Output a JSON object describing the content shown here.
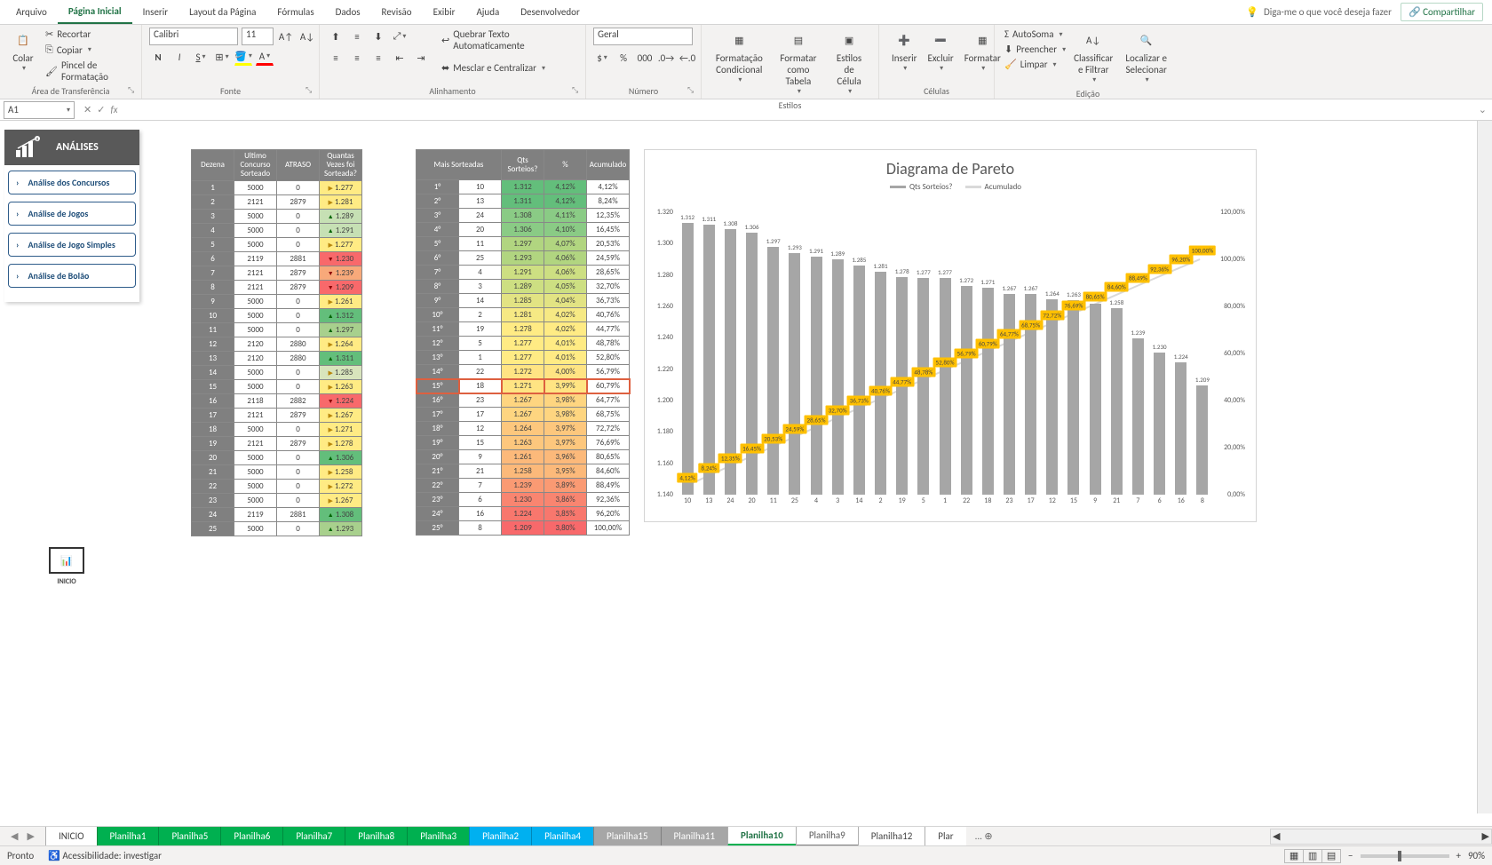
{
  "menu": {
    "arquivo": "Arquivo",
    "paginaInicial": "Página Inicial",
    "inserir": "Inserir",
    "layout": "Layout da Página",
    "formulas": "Fórmulas",
    "dados": "Dados",
    "revisao": "Revisão",
    "exibir": "Exibir",
    "ajuda": "Ajuda",
    "desenv": "Desenvolvedor",
    "tellme": "Diga-me o que você deseja fazer",
    "share": "Compartilhar"
  },
  "ribbon": {
    "clipboard": {
      "title": "Área de Transferência",
      "colar": "Colar",
      "recortar": "Recortar",
      "copiar": "Copiar",
      "pincel": "Pincel de Formatação"
    },
    "font": {
      "title": "Fonte",
      "name": "Calibri",
      "size": "11"
    },
    "align": {
      "title": "Alinhamento",
      "wrap": "Quebrar Texto Automaticamente",
      "merge": "Mesclar e Centralizar"
    },
    "number": {
      "title": "Número",
      "format": "Geral"
    },
    "styles": {
      "title": "Estilos",
      "cond": "Formatação Condicional",
      "table": "Formatar como Tabela",
      "cell": "Estilos de Célula"
    },
    "cells": {
      "title": "Células",
      "insert": "Inserir",
      "delete": "Excluir",
      "format": "Formatar"
    },
    "editing": {
      "title": "Edição",
      "autosum": "AutoSoma",
      "fill": "Preencher",
      "clear": "Limpar",
      "sort": "Classificar e Filtrar",
      "find": "Localizar e Selecionar"
    }
  },
  "nameBox": "A1",
  "analysisPanel": {
    "title": "ANÁLISES",
    "btns": [
      "Análise dos Concursos",
      "Análise de Jogos",
      "Análise de Jogo Simples",
      "Análise de Bolão"
    ],
    "inicioLabel": "INICIO"
  },
  "table1": {
    "headers": [
      "Dezena",
      "Ultimo Concurso Sorteado",
      "ATRASO",
      "Quantas Vezes foi Sorteada?"
    ],
    "rows": [
      {
        "d": "1",
        "c": "5000",
        "a": "0",
        "q": "1.277",
        "qc": "#ffeb84",
        "ar": "side"
      },
      {
        "d": "2",
        "c": "2121",
        "a": "2879",
        "q": "1.281",
        "qc": "#ffeb84",
        "ar": "side"
      },
      {
        "d": "3",
        "c": "5000",
        "a": "0",
        "q": "1.289",
        "qc": "#c6e0b4",
        "ar": "up"
      },
      {
        "d": "4",
        "c": "5000",
        "a": "0",
        "q": "1.291",
        "qc": "#c6e0b4",
        "ar": "up"
      },
      {
        "d": "5",
        "c": "5000",
        "a": "0",
        "q": "1.277",
        "qc": "#ffeb84",
        "ar": "side"
      },
      {
        "d": "6",
        "c": "2119",
        "a": "2881",
        "q": "1.230",
        "qc": "#f8696b",
        "ar": "down"
      },
      {
        "d": "7",
        "c": "2121",
        "a": "2879",
        "q": "1.239",
        "qc": "#f8a97a",
        "ar": "down"
      },
      {
        "d": "8",
        "c": "2121",
        "a": "2879",
        "q": "1.209",
        "qc": "#f8696b",
        "ar": "down"
      },
      {
        "d": "9",
        "c": "5000",
        "a": "0",
        "q": "1.261",
        "qc": "#ffeb84",
        "ar": "side"
      },
      {
        "d": "10",
        "c": "5000",
        "a": "0",
        "q": "1.312",
        "qc": "#63be7b",
        "ar": "up"
      },
      {
        "d": "11",
        "c": "5000",
        "a": "0",
        "q": "1.297",
        "qc": "#a8d08d",
        "ar": "up"
      },
      {
        "d": "12",
        "c": "2120",
        "a": "2880",
        "q": "1.264",
        "qc": "#ffeb84",
        "ar": "side"
      },
      {
        "d": "13",
        "c": "2120",
        "a": "2880",
        "q": "1.311",
        "qc": "#63be7b",
        "ar": "up"
      },
      {
        "d": "14",
        "c": "5000",
        "a": "0",
        "q": "1.285",
        "qc": "#d8e4bc",
        "ar": "side"
      },
      {
        "d": "15",
        "c": "5000",
        "a": "0",
        "q": "1.263",
        "qc": "#ffeb84",
        "ar": "side"
      },
      {
        "d": "16",
        "c": "2118",
        "a": "2882",
        "q": "1.224",
        "qc": "#f8696b",
        "ar": "down"
      },
      {
        "d": "17",
        "c": "2121",
        "a": "2879",
        "q": "1.267",
        "qc": "#ffeb84",
        "ar": "side"
      },
      {
        "d": "18",
        "c": "5000",
        "a": "0",
        "q": "1.271",
        "qc": "#ffeb84",
        "ar": "side"
      },
      {
        "d": "19",
        "c": "2121",
        "a": "2879",
        "q": "1.278",
        "qc": "#ffeb84",
        "ar": "side"
      },
      {
        "d": "20",
        "c": "5000",
        "a": "0",
        "q": "1.306",
        "qc": "#63be7b",
        "ar": "up"
      },
      {
        "d": "21",
        "c": "5000",
        "a": "0",
        "q": "1.258",
        "qc": "#ffeb84",
        "ar": "side"
      },
      {
        "d": "22",
        "c": "5000",
        "a": "0",
        "q": "1.272",
        "qc": "#ffeb84",
        "ar": "side"
      },
      {
        "d": "23",
        "c": "5000",
        "a": "0",
        "q": "1.267",
        "qc": "#ffeb84",
        "ar": "side"
      },
      {
        "d": "24",
        "c": "2119",
        "a": "2881",
        "q": "1.308",
        "qc": "#63be7b",
        "ar": "up"
      },
      {
        "d": "25",
        "c": "5000",
        "a": "0",
        "q": "1.293",
        "qc": "#a8d08d",
        "ar": "up"
      }
    ]
  },
  "table2": {
    "headers": [
      "Mais Sorteadas",
      "",
      "Qts Sorteios?",
      "%",
      "Acumulado"
    ],
    "highlightRow": 14,
    "rows": [
      {
        "r": "1°",
        "d": "10",
        "q": "1.312",
        "p": "4,12%",
        "a": "4,12%",
        "qc": "#63be7b",
        "pc": "#63be7b"
      },
      {
        "r": "2°",
        "d": "13",
        "q": "1.311",
        "p": "4,12%",
        "a": "8,24%",
        "qc": "#63be7b",
        "pc": "#63be7b"
      },
      {
        "r": "3°",
        "d": "24",
        "q": "1.308",
        "p": "4,11%",
        "a": "12,35%",
        "qc": "#8acb85",
        "pc": "#8acb85"
      },
      {
        "r": "4°",
        "d": "20",
        "q": "1.306",
        "p": "4,10%",
        "a": "16,45%",
        "qc": "#8acb85",
        "pc": "#8acb85"
      },
      {
        "r": "5°",
        "d": "11",
        "q": "1.297",
        "p": "4,07%",
        "a": "20,53%",
        "qc": "#b1d580",
        "pc": "#b1d580"
      },
      {
        "r": "6°",
        "d": "25",
        "q": "1.293",
        "p": "4,06%",
        "a": "24,59%",
        "qc": "#b1d580",
        "pc": "#b1d580"
      },
      {
        "r": "7°",
        "d": "4",
        "q": "1.291",
        "p": "4,06%",
        "a": "28,65%",
        "qc": "#cddf82",
        "pc": "#cddf82"
      },
      {
        "r": "8°",
        "d": "3",
        "q": "1.289",
        "p": "4,05%",
        "a": "32,70%",
        "qc": "#cddf82",
        "pc": "#cddf82"
      },
      {
        "r": "9°",
        "d": "14",
        "q": "1.285",
        "p": "4,04%",
        "a": "36,73%",
        "qc": "#e2e383",
        "pc": "#e2e383"
      },
      {
        "r": "10°",
        "d": "2",
        "q": "1.281",
        "p": "4,02%",
        "a": "40,76%",
        "qc": "#f6e984",
        "pc": "#f6e984"
      },
      {
        "r": "11°",
        "d": "19",
        "q": "1.278",
        "p": "4,02%",
        "a": "44,77%",
        "qc": "#ffeb84",
        "pc": "#ffeb84"
      },
      {
        "r": "12°",
        "d": "5",
        "q": "1.277",
        "p": "4,01%",
        "a": "48,78%",
        "qc": "#ffeb84",
        "pc": "#ffeb84"
      },
      {
        "r": "13°",
        "d": "1",
        "q": "1.277",
        "p": "4,01%",
        "a": "52,80%",
        "qc": "#ffeb84",
        "pc": "#ffeb84"
      },
      {
        "r": "14°",
        "d": "22",
        "q": "1.272",
        "p": "4,00%",
        "a": "56,79%",
        "qc": "#ffe483",
        "pc": "#ffe483"
      },
      {
        "r": "15°",
        "d": "18",
        "q": "1.271",
        "p": "3,99%",
        "a": "60,79%",
        "qc": "#ffe483",
        "pc": "#ffe483"
      },
      {
        "r": "16°",
        "d": "23",
        "q": "1.267",
        "p": "3,98%",
        "a": "64,77%",
        "qc": "#fed580",
        "pc": "#fed580"
      },
      {
        "r": "17°",
        "d": "17",
        "q": "1.267",
        "p": "3,98%",
        "a": "68,75%",
        "qc": "#fed580",
        "pc": "#fed580"
      },
      {
        "r": "18°",
        "d": "12",
        "q": "1.264",
        "p": "3,97%",
        "a": "72,72%",
        "qc": "#fdc77d",
        "pc": "#fdc77d"
      },
      {
        "r": "19°",
        "d": "15",
        "q": "1.263",
        "p": "3,97%",
        "a": "76,69%",
        "qc": "#fdc77d",
        "pc": "#fdc77d"
      },
      {
        "r": "20°",
        "d": "9",
        "q": "1.261",
        "p": "3,96%",
        "a": "80,65%",
        "qc": "#fcb97a",
        "pc": "#fcb97a"
      },
      {
        "r": "21°",
        "d": "21",
        "q": "1.258",
        "p": "3,95%",
        "a": "84,60%",
        "qc": "#fcb97a",
        "pc": "#fcb97a"
      },
      {
        "r": "22°",
        "d": "7",
        "q": "1.239",
        "p": "3,89%",
        "a": "88,49%",
        "qc": "#fa9a73",
        "pc": "#fa9a73"
      },
      {
        "r": "23°",
        "d": "6",
        "q": "1.230",
        "p": "3,86%",
        "a": "92,36%",
        "qc": "#f98570",
        "pc": "#f98570"
      },
      {
        "r": "24°",
        "d": "16",
        "q": "1.224",
        "p": "3,85%",
        "a": "96,20%",
        "qc": "#f8776d",
        "pc": "#f8776d"
      },
      {
        "r": "25°",
        "d": "8",
        "q": "1.209",
        "p": "3,80%",
        "a": "100,00%",
        "qc": "#f8696b",
        "pc": "#f8696b"
      }
    ]
  },
  "chart": {
    "title": "Diagrama de Pareto",
    "legend": {
      "series1": "Qts Sorteios?",
      "series2": "Acumulado"
    },
    "barColor": "#a6a6a6",
    "lineColor": "#d9d9d9",
    "labelBg": "#ffc000",
    "yLeft": {
      "min": 1140,
      "max": 1320,
      "ticks": [
        "1.140",
        "1.160",
        "1.180",
        "1.200",
        "1.220",
        "1.240",
        "1.260",
        "1.280",
        "1.300",
        "1.320"
      ]
    },
    "yRight": {
      "min": 0,
      "max": 120,
      "ticks": [
        "0,00%",
        "20,00%",
        "40,00%",
        "60,00%",
        "80,00%",
        "100,00%",
        "120,00%"
      ]
    },
    "categories": [
      "10",
      "13",
      "24",
      "20",
      "11",
      "25",
      "4",
      "3",
      "14",
      "2",
      "19",
      "5",
      "1",
      "22",
      "18",
      "23",
      "17",
      "12",
      "15",
      "9",
      "21",
      "7",
      "6",
      "16",
      "8"
    ],
    "barValues": [
      1312,
      1311,
      1308,
      1306,
      1297,
      1293,
      1291,
      1289,
      1285,
      1281,
      1278,
      1277,
      1277,
      1272,
      1271,
      1267,
      1267,
      1264,
      1263,
      1261,
      1258,
      1239,
      1230,
      1224,
      1209
    ],
    "barLabels": [
      "1.312",
      "1.311",
      "1.308",
      "1.306",
      "1.297",
      "1.293",
      "1.291",
      "1.289",
      "1.285",
      "1.281",
      "1.278",
      "1.277",
      "1.277",
      "1.272",
      "1.271",
      "1.267",
      "1.267",
      "1.264",
      "1.263",
      "1.261",
      "1.258",
      "1.239",
      "1.230",
      "1.224",
      "1.209"
    ],
    "lineValues": [
      4.12,
      8.24,
      12.35,
      16.45,
      20.53,
      24.59,
      28.65,
      32.7,
      36.73,
      40.76,
      44.77,
      48.78,
      52.8,
      56.79,
      60.79,
      64.77,
      68.75,
      72.72,
      76.69,
      80.65,
      84.6,
      88.49,
      92.36,
      96.2,
      100.0
    ],
    "lineLabels": [
      "4,12%",
      "8,24%",
      "12,35%",
      "16,45%",
      "20,53%",
      "24,59%",
      "28,65%",
      "32,70%",
      "36,73%",
      "40,76%",
      "44,77%",
      "48,78%",
      "52,80%",
      "56,79%",
      "60,79%",
      "64,77%",
      "68,75%",
      "72,72%",
      "76,69%",
      "80,65%",
      "84,60%",
      "88,49%",
      "92,36%",
      "96,20%",
      "100,00%"
    ]
  },
  "sheets": [
    {
      "name": "INICIO",
      "cls": ""
    },
    {
      "name": "Planilha1",
      "cls": "green"
    },
    {
      "name": "Planilha5",
      "cls": "green"
    },
    {
      "name": "Planilha6",
      "cls": "green"
    },
    {
      "name": "Planilha7",
      "cls": "green"
    },
    {
      "name": "Planilha8",
      "cls": "green"
    },
    {
      "name": "Planilha3",
      "cls": "green"
    },
    {
      "name": "Planilha2",
      "cls": "blue"
    },
    {
      "name": "Planilha4",
      "cls": "blue"
    },
    {
      "name": "Planilha15",
      "cls": "gray"
    },
    {
      "name": "Planilha11",
      "cls": "gray"
    },
    {
      "name": "Planilha10",
      "cls": "active"
    },
    {
      "name": "Planilha9",
      "cls": "activegray"
    },
    {
      "name": "Planilha12",
      "cls": ""
    },
    {
      "name": "Plar",
      "cls": ""
    }
  ],
  "status": {
    "ready": "Pronto",
    "acc": "Acessibilidade: investigar",
    "zoom": "90%"
  }
}
